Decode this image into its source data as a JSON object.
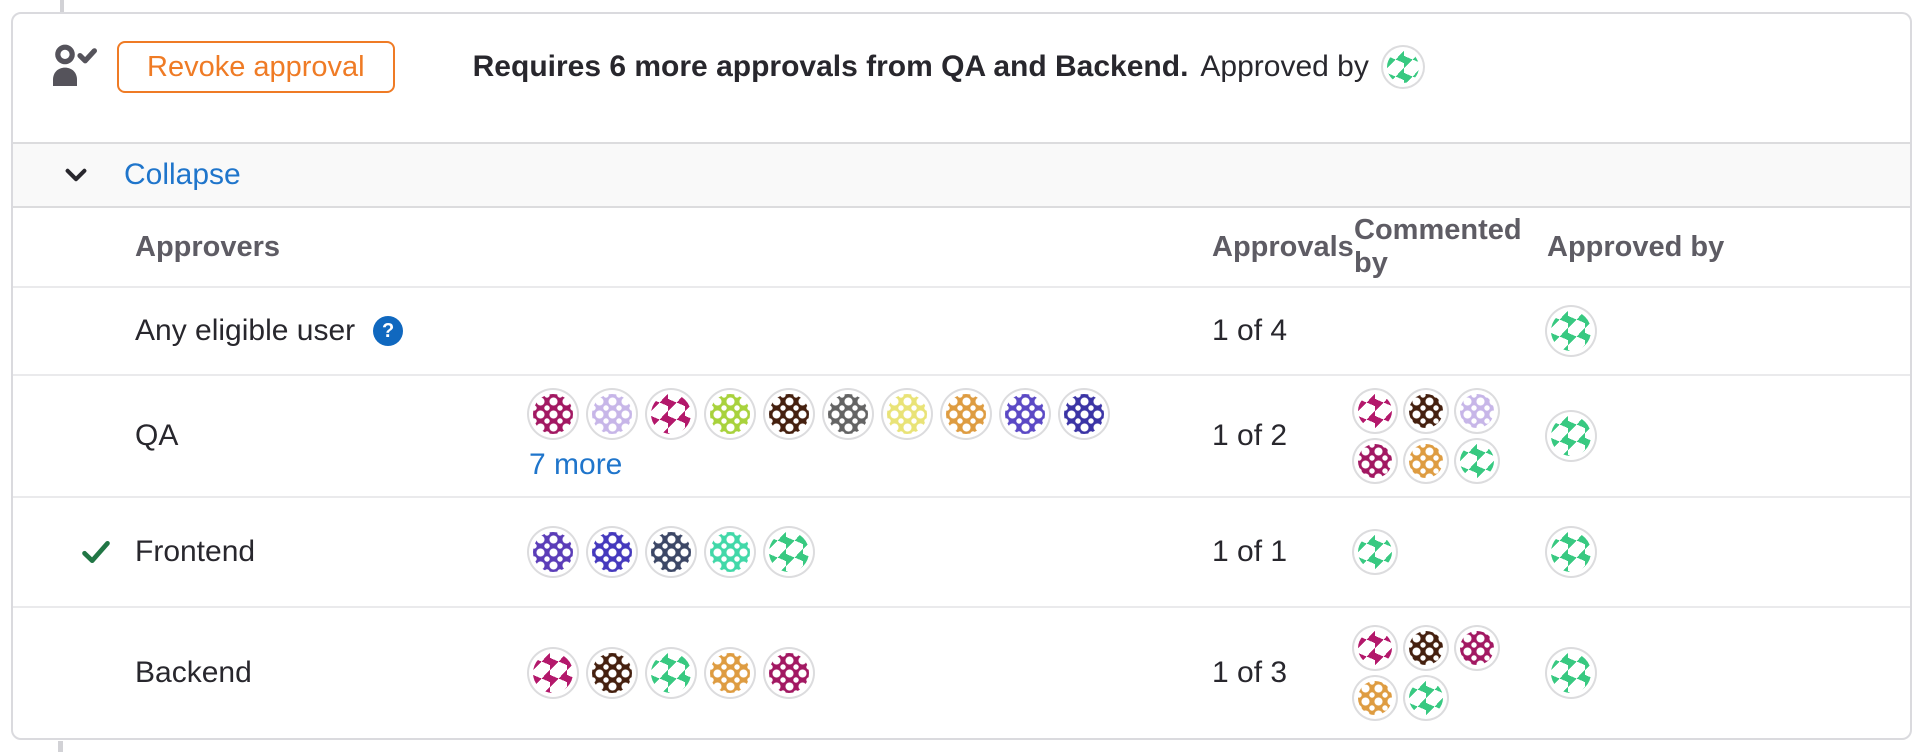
{
  "header": {
    "revoke_button": "Revoke approval",
    "message_bold": "Requires 6 more approvals from QA and Backend.",
    "message_regular": "Approved by",
    "approved_by_avatar": {
      "color": "#38c981",
      "style": "light"
    }
  },
  "collapse": {
    "label": "Collapse"
  },
  "help_glyph": "?",
  "table": {
    "columns": {
      "approvers": "Approvers",
      "approvals": "Approvals",
      "commented_by": "Commented by",
      "approved_by": "Approved by"
    },
    "rows": [
      {
        "name": "Any eligible user",
        "help": true,
        "approved_rule": false,
        "approvals": "1 of 4",
        "more_label": "",
        "approver_avatars": [],
        "commented_by": [],
        "approved_by": [
          {
            "color": "#38c981",
            "style": "light"
          }
        ]
      },
      {
        "name": "QA",
        "help": false,
        "approved_rule": false,
        "approvals": "1 of 2",
        "more_label": "7 more",
        "approver_avatars": [
          {
            "color": "#a21862",
            "style": "solid"
          },
          {
            "color": "#c7b6e8",
            "style": "solid"
          },
          {
            "color": "#b3186b",
            "style": "light"
          },
          {
            "color": "#a8d23c",
            "style": "solid"
          },
          {
            "color": "#45200f",
            "style": "solid"
          },
          {
            "color": "#646464",
            "style": "solid"
          },
          {
            "color": "#e9e377",
            "style": "solid"
          },
          {
            "color": "#de9c41",
            "style": "solid"
          },
          {
            "color": "#5b49c5",
            "style": "solid"
          },
          {
            "color": "#3b34a5",
            "style": "solid"
          }
        ],
        "commented_by": [
          {
            "color": "#b3186b",
            "style": "light"
          },
          {
            "color": "#45200f",
            "style": "solid"
          },
          {
            "color": "#c7b6e8",
            "style": "solid"
          },
          {
            "color": "#a21862",
            "style": "solid"
          },
          {
            "color": "#de9c41",
            "style": "solid"
          },
          {
            "color": "#38c981",
            "style": "light"
          }
        ],
        "approved_by": [
          {
            "color": "#38c981",
            "style": "light"
          }
        ]
      },
      {
        "name": "Frontend",
        "help": false,
        "approved_rule": true,
        "approvals": "1 of 1",
        "more_label": "",
        "approver_avatars": [
          {
            "color": "#5b3db8",
            "style": "solid"
          },
          {
            "color": "#4539bd",
            "style": "solid"
          },
          {
            "color": "#3c4766",
            "style": "solid"
          },
          {
            "color": "#41d8a8",
            "style": "solid"
          },
          {
            "color": "#38c981",
            "style": "light"
          }
        ],
        "commented_by": [
          {
            "color": "#38c981",
            "style": "light"
          }
        ],
        "approved_by": [
          {
            "color": "#38c981",
            "style": "light"
          }
        ]
      },
      {
        "name": "Backend",
        "help": false,
        "approved_rule": false,
        "approvals": "1 of 3",
        "more_label": "",
        "approver_avatars": [
          {
            "color": "#b3186b",
            "style": "light"
          },
          {
            "color": "#45200f",
            "style": "solid"
          },
          {
            "color": "#38c981",
            "style": "light"
          },
          {
            "color": "#de9c41",
            "style": "solid"
          },
          {
            "color": "#a21862",
            "style": "solid"
          }
        ],
        "commented_by": [
          {
            "color": "#b3186b",
            "style": "light"
          },
          {
            "color": "#45200f",
            "style": "solid"
          },
          {
            "color": "#a21862",
            "style": "solid"
          },
          {
            "color": "#de9c41",
            "style": "solid"
          },
          {
            "color": "#38c981",
            "style": "light"
          }
        ],
        "approved_by": [
          {
            "color": "#38c981",
            "style": "light"
          }
        ]
      }
    ]
  },
  "colors": {
    "accent_orange": "#ef7b25",
    "link_blue": "#1f75cb",
    "help_blue": "#1068bf",
    "check_green": "#217645",
    "avatar_green": "#38c981"
  }
}
